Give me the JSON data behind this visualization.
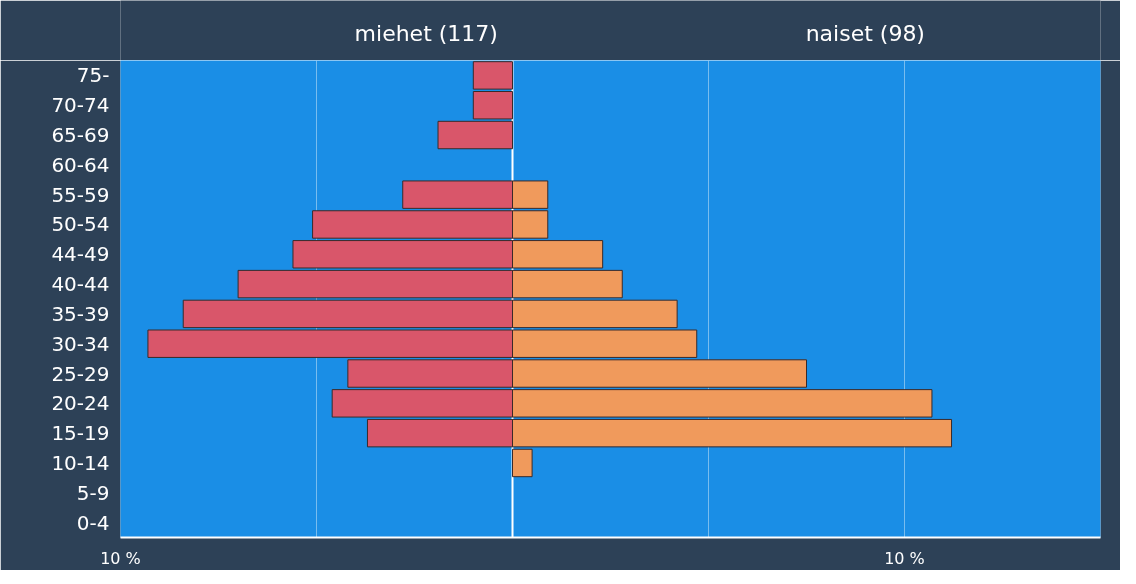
{
  "chart_data": {
    "type": "bar",
    "orientation": "horizontal",
    "stacked": true,
    "categories": [
      "75-",
      "70-74",
      "65-69",
      "60-64",
      "55-59",
      "50-54",
      "44-49",
      "40-44",
      "35-39",
      "30-34",
      "25-29",
      "20-24",
      "15-19",
      "10-14",
      "5-9",
      "0-4"
    ],
    "series": [
      {
        "name": "miehet (117)",
        "color": "#d9566a",
        "values": [
          -1.0,
          -1.0,
          -1.9,
          null,
          -2.8,
          -5.1,
          -5.6,
          -7.0,
          -8.4,
          -9.3,
          -4.2,
          -4.6,
          -3.7,
          null,
          null,
          null
        ]
      },
      {
        "name": "naiset (98)",
        "color": "#f09a5c",
        "values": [
          null,
          null,
          null,
          null,
          0.9,
          0.9,
          2.3,
          2.8,
          4.2,
          4.7,
          7.5,
          10.7,
          11.2,
          0.5,
          null,
          null
        ]
      }
    ],
    "xlim": [
      -10,
      15
    ],
    "xticks": [
      {
        "value": -10,
        "label": "10 %"
      },
      {
        "value": -5,
        "label": null
      },
      {
        "value": 0,
        "label": null
      },
      {
        "value": 5,
        "label": null
      },
      {
        "value": 10,
        "label": "10 %"
      },
      {
        "value": 15,
        "label": null
      }
    ],
    "grid": "x"
  }
}
